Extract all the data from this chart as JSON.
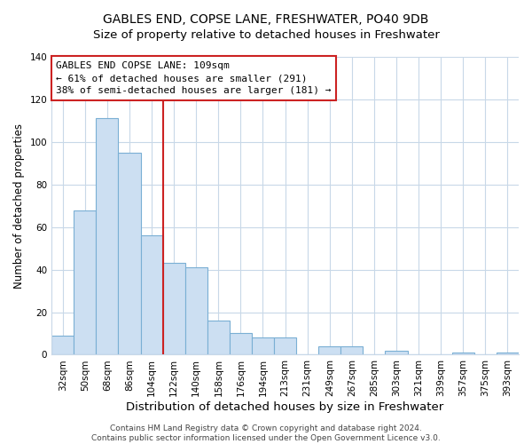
{
  "title": "GABLES END, COPSE LANE, FRESHWATER, PO40 9DB",
  "subtitle": "Size of property relative to detached houses in Freshwater",
  "xlabel": "Distribution of detached houses by size in Freshwater",
  "ylabel": "Number of detached properties",
  "categories": [
    "32sqm",
    "50sqm",
    "68sqm",
    "86sqm",
    "104sqm",
    "122sqm",
    "140sqm",
    "158sqm",
    "176sqm",
    "194sqm",
    "213sqm",
    "231sqm",
    "249sqm",
    "267sqm",
    "285sqm",
    "303sqm",
    "321sqm",
    "339sqm",
    "357sqm",
    "375sqm",
    "393sqm"
  ],
  "values": [
    9,
    68,
    111,
    95,
    56,
    43,
    41,
    16,
    10,
    8,
    8,
    0,
    4,
    4,
    0,
    2,
    0,
    0,
    1,
    0,
    1
  ],
  "bar_color": "#ccdff2",
  "bar_edge_color": "#7aafd4",
  "vline_index": 5,
  "vline_color": "#cc2222",
  "annotation_text_line1": "GABLES END COPSE LANE: 109sqm",
  "annotation_text_line2": "← 61% of detached houses are smaller (291)",
  "annotation_text_line3": "38% of semi-detached houses are larger (181) →",
  "ylim": [
    0,
    140
  ],
  "yticks": [
    0,
    20,
    40,
    60,
    80,
    100,
    120,
    140
  ],
  "background_color": "#ffffff",
  "grid_color": "#c8d8e8",
  "footer_line1": "Contains HM Land Registry data © Crown copyright and database right 2024.",
  "footer_line2": "Contains public sector information licensed under the Open Government Licence v3.0.",
  "title_fontsize": 10,
  "subtitle_fontsize": 9.5,
  "xlabel_fontsize": 9.5,
  "ylabel_fontsize": 8.5,
  "tick_fontsize": 7.5,
  "annotation_fontsize": 8,
  "footer_fontsize": 6.5
}
